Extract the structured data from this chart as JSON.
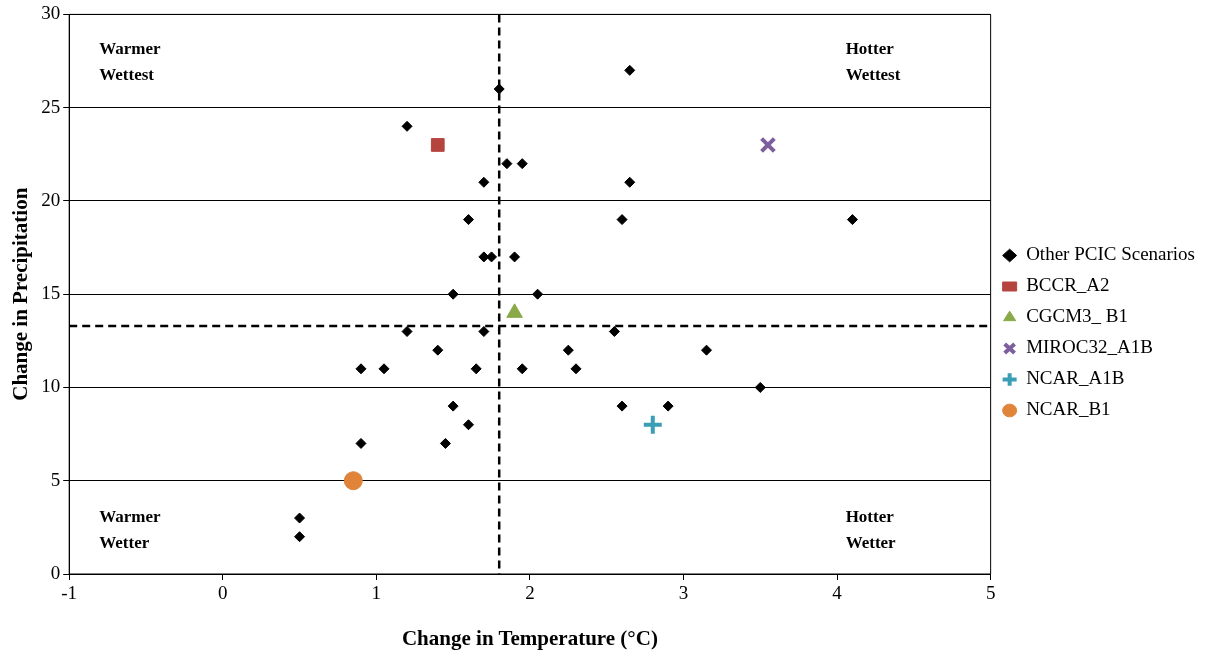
{
  "chart_data": {
    "type": "scatter",
    "xlabel": "Change in Temperature (°C)",
    "ylabel": "Change in Precipitation",
    "xlim": [
      -1,
      5
    ],
    "xticks": [
      -1,
      0,
      1,
      2,
      3,
      4,
      5
    ],
    "ylim": [
      0,
      30
    ],
    "yticks": [
      0,
      5,
      10,
      15,
      20,
      25,
      30
    ],
    "grid": "y",
    "legend": "right",
    "series": [
      {
        "name": "Other PCIC Scenarios",
        "color": "#000000",
        "marker": "diamond",
        "x": [
          0.5,
          0.5,
          0.9,
          0.9,
          1.05,
          1.2,
          1.2,
          1.4,
          1.5,
          1.5,
          1.45,
          1.6,
          1.6,
          1.65,
          1.7,
          1.7,
          1.7,
          1.75,
          1.8,
          1.85,
          1.95,
          1.9,
          1.95,
          2.05,
          2.25,
          2.3,
          2.55,
          2.6,
          2.6,
          2.65,
          2.65,
          2.9,
          3.15,
          3.5,
          4.1
        ],
        "values": [
          3,
          2,
          7,
          11,
          11,
          13,
          24,
          12,
          9,
          15,
          7,
          8,
          19,
          11,
          13,
          21,
          17,
          17,
          26,
          22,
          22,
          17,
          11,
          15,
          12,
          11,
          13,
          19,
          9,
          21,
          27,
          9,
          12,
          10,
          19
        ]
      },
      {
        "name": "BCCR_A2",
        "color": "#b5443f",
        "marker": "square",
        "x": [
          1.4
        ],
        "values": [
          23
        ]
      },
      {
        "name": "CGCM3_ B1",
        "color": "#8aaa4a",
        "marker": "triangle",
        "x": [
          1.9
        ],
        "values": [
          14
        ]
      },
      {
        "name": "MIROC32_A1B",
        "color": "#7e5f9e",
        "marker": "x",
        "x": [
          3.55
        ],
        "values": [
          23
        ]
      },
      {
        "name": "NCAR_A1B",
        "color": "#3a9fb5",
        "marker": "cross",
        "x": [
          2.8
        ],
        "values": [
          8
        ]
      },
      {
        "name": "NCAR_B1",
        "color": "#e0843a",
        "marker": "circle",
        "x": [
          0.85
        ],
        "values": [
          5
        ]
      }
    ],
    "ref_lines": [
      {
        "axis": "x",
        "value": 1.8,
        "line_style": "dashed"
      },
      {
        "axis": "y",
        "value": 13.3,
        "line_style": "dashed"
      }
    ],
    "annotations": [
      "Warmer\nWettest",
      "Hotter\nWettest",
      "Warmer\nWetter",
      "Hotter\nWetter"
    ]
  }
}
